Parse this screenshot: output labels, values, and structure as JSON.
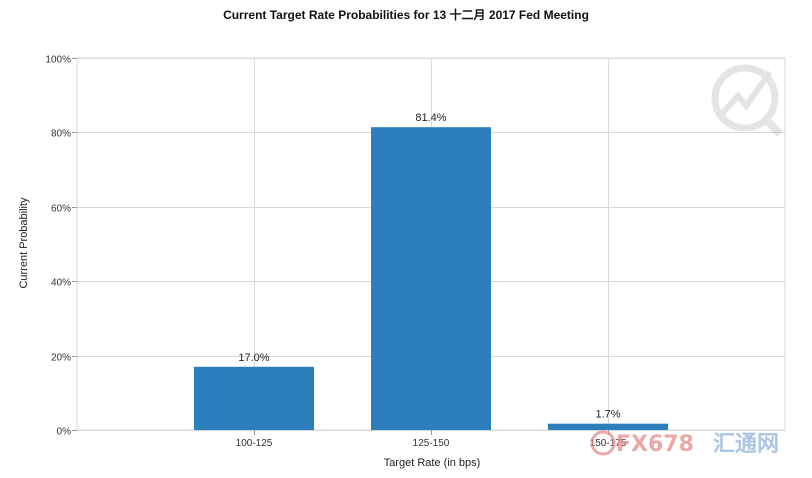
{
  "chart_data": {
    "type": "bar",
    "title": "Current Target Rate Probabilities for 13 十二月 2017 Fed Meeting",
    "xlabel": "Target Rate (in bps)",
    "ylabel": "Current Probability",
    "categories": [
      "100-125",
      "125-150",
      "150-175"
    ],
    "values": [
      17.0,
      81.4,
      1.7
    ],
    "data_labels": [
      "17.0%",
      "81.4%",
      "1.7%"
    ],
    "ylim": [
      0,
      100
    ],
    "y_ticks": [
      0,
      20,
      40,
      60,
      80,
      100
    ],
    "y_tick_labels": [
      "0%",
      "20%",
      "40%",
      "60%",
      "80%",
      "100%"
    ],
    "grid": true,
    "bar_color": "#2b7fba",
    "grid_color": "#d9d9d9"
  },
  "watermark": {
    "text_fx": "FX678",
    "text_cn": "汇通网",
    "color_fx": "#e58b8b",
    "color_cn": "#8fb3d9"
  }
}
